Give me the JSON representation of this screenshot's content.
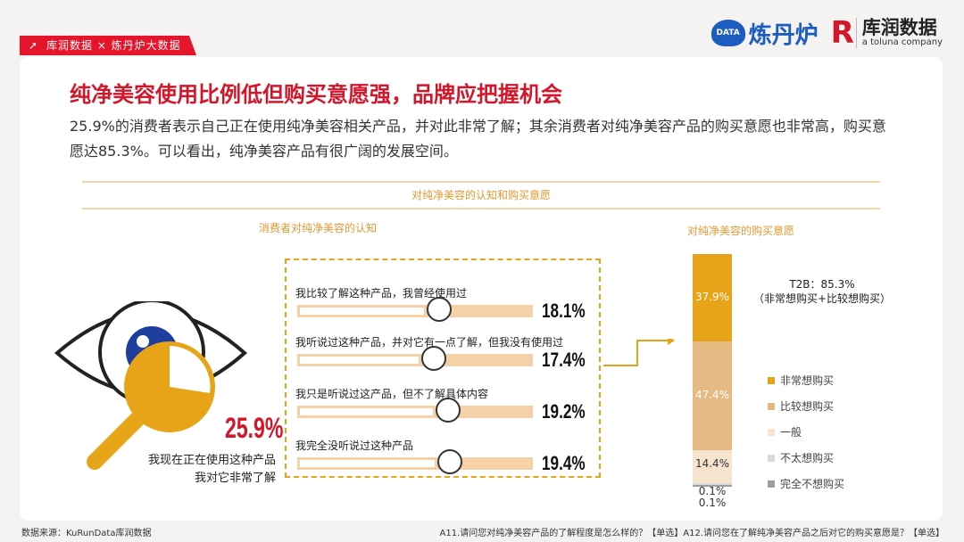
{
  "header": {
    "tag": "库润数据 × 炼丹炉大数据",
    "logo1_mark": "DATA",
    "logo1_text": "炼丹炉",
    "logo2_mark": "R",
    "logo2_name": "库润数据",
    "logo2_sub": "a toluna company"
  },
  "title": "纯净美容使用比例低但购买意愿强，品牌应把握机会",
  "subtitle": "25.9%的消费者表示自己正在使用纯净美容相关产品，并对此非常了解；其余消费者对纯净美容产品的购买意愿也非常高，购买意愿达85.3%。可以看出，纯净美容产品有很广阔的发展空间。",
  "section_title": "对纯净美容的认知和购买意愿",
  "left_chart": {
    "subtitle": "消费者对纯净美容的认知",
    "highlight_value": "25.9%",
    "highlight_label_1": "我现在正在使用这种产品",
    "highlight_label_2": "我对它非常了解"
  },
  "right_chart": {
    "subtitle": "对纯净美容的购买意愿",
    "t2b_line1": "T2B：85.3%",
    "t2b_line2": "（非常想购买+比较想购买）",
    "extra_label": "0.1%"
  },
  "chart_data": [
    {
      "type": "bar",
      "title": "消费者对纯净美容的认知",
      "categories": [
        "我现在正在使用这种产品 我对它非常了解",
        "我比较了解这种产品，我曾经使用过",
        "我听说过这种产品，并对它有一点了解，但我没有使用过",
        "我只是听说过这产品，但不了解具体内容",
        "我完全没听说过这种产品"
      ],
      "values": [
        25.9,
        18.1,
        17.4,
        19.2,
        19.4
      ],
      "labels": [
        "25.9%",
        "18.1%",
        "17.4%",
        "19.2%",
        "19.4%"
      ],
      "unit": "%"
    },
    {
      "type": "bar",
      "stacked": true,
      "title": "对纯净美容的购买意愿",
      "series": [
        {
          "name": "非常想购买",
          "value": 37.9,
          "label": "37.9%",
          "color": "#e8a418"
        },
        {
          "name": "比较想购买",
          "value": 47.4,
          "label": "47.4%",
          "color": "#e5bb83"
        },
        {
          "name": "一般",
          "value": 14.4,
          "label": "14.4%",
          "color": "#f6e4cf"
        },
        {
          "name": "不太想购买",
          "value": 0.1,
          "label": "0.1%",
          "color": "#d9d9d9"
        },
        {
          "name": "完全不想购买",
          "value": 0.1,
          "label": "0.1%",
          "color": "#9e9e9e"
        }
      ],
      "unit": "%"
    }
  ],
  "footer": {
    "source": "数据来源：KuRunData库润数据",
    "questions": "A11.请问您对纯净美容产品的了解程度是怎么样的？【单选】A12.请问您在了解纯净美容产品之后对它的购买意愿是？【单选】"
  }
}
